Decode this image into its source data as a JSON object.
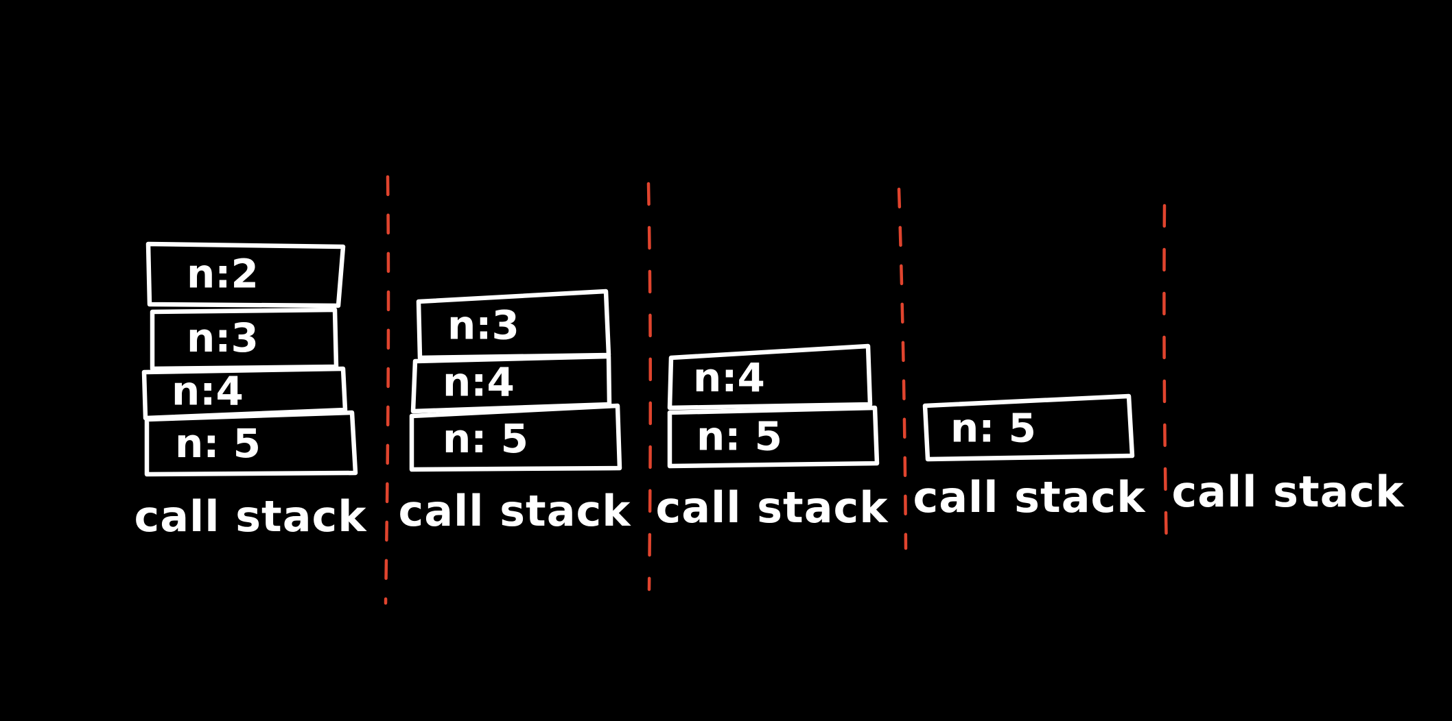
{
  "colors": {
    "background": "#000000",
    "ink": "#ffffff",
    "divider": "#e0442e"
  },
  "stacks": [
    {
      "caption": "call stack",
      "frames": [
        {
          "label": "n:2"
        },
        {
          "label": "n:3"
        },
        {
          "label": "n:4"
        },
        {
          "label": "n: 5"
        }
      ]
    },
    {
      "caption": "call stack",
      "frames": [
        {
          "label": "n:3"
        },
        {
          "label": "n:4"
        },
        {
          "label": "n: 5"
        }
      ]
    },
    {
      "caption": "call stack",
      "frames": [
        {
          "label": "n:4"
        },
        {
          "label": "n: 5"
        }
      ]
    },
    {
      "caption": "call stack",
      "frames": [
        {
          "label": "n:  5"
        }
      ]
    },
    {
      "caption": "call stack",
      "frames": []
    }
  ]
}
